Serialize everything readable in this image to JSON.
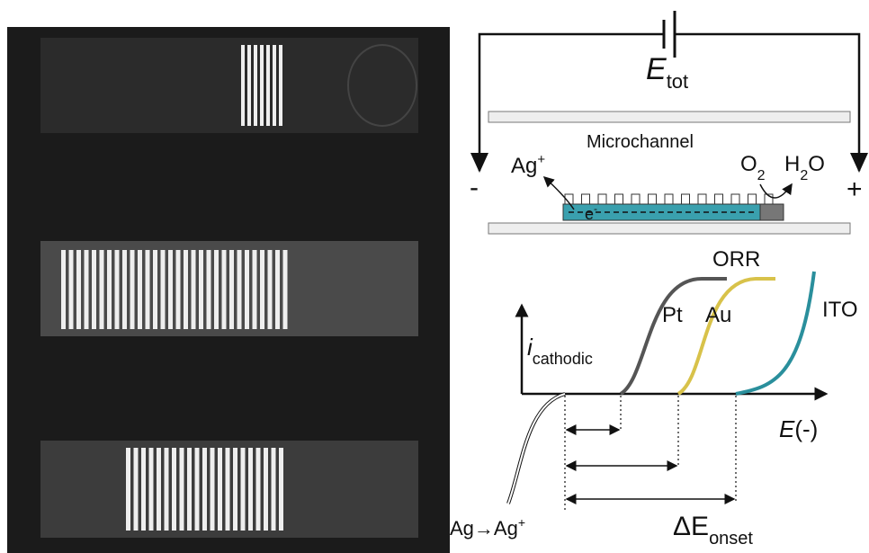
{
  "circuit": {
    "voltage_label": {
      "main": "E",
      "sub": "tot"
    },
    "channel_label": "Microchannel",
    "negative": "-",
    "positive": "+",
    "ion": {
      "main": "Ag",
      "sup": "+"
    },
    "electron": {
      "main": "e",
      "sup": "-"
    },
    "reactant": {
      "main": "O",
      "sub": "2"
    },
    "product": {
      "main": "H",
      "sub": "2",
      "tail": "O"
    }
  },
  "plot": {
    "curve_labels": [
      "ORR",
      "Pt",
      "Au",
      "ITO"
    ],
    "y_label": {
      "main": "i",
      "sub": "cathodic"
    },
    "x_label": {
      "main": "E",
      "tail": "(-)"
    },
    "oxidation": {
      "main": "Ag→Ag",
      "sup": "+"
    },
    "onset": {
      "main": "ΔE",
      "sub": "onset"
    }
  }
}
